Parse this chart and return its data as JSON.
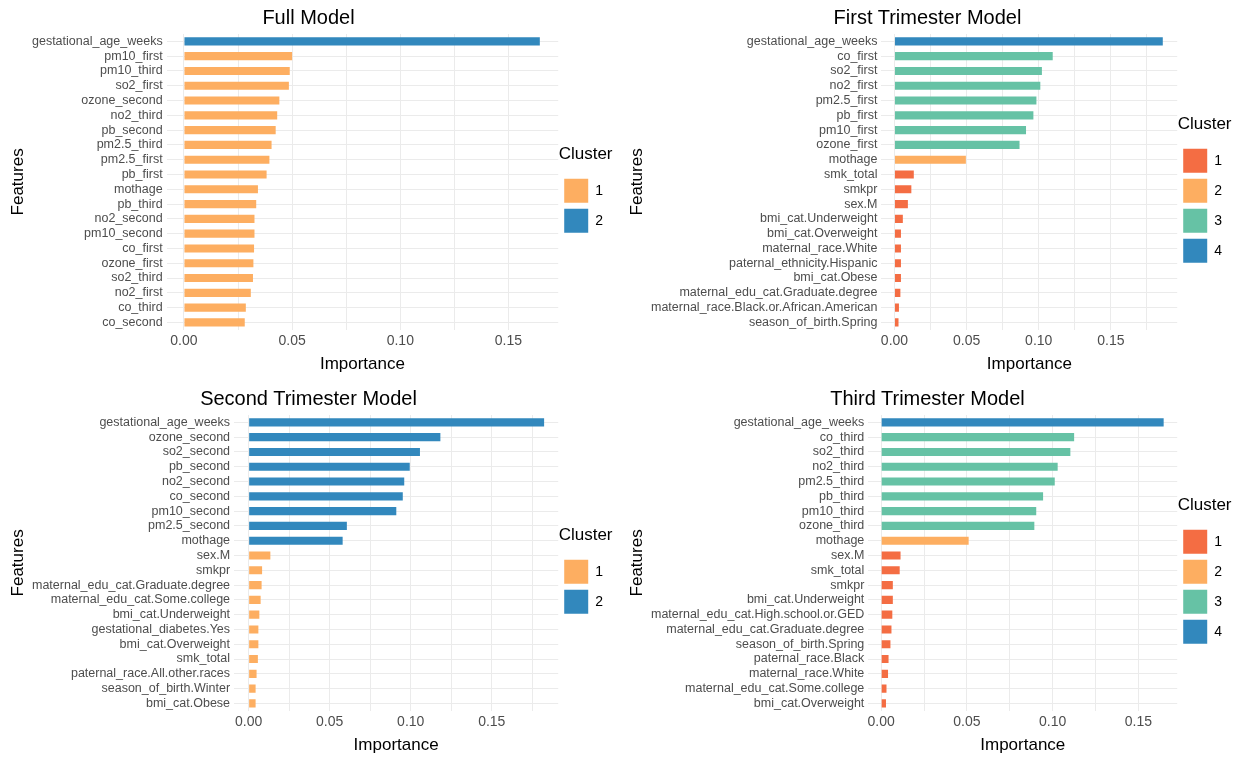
{
  "chart_data": [
    {
      "type": "bar",
      "orientation": "horizontal",
      "title": "Full Model",
      "xlabel": "Importance",
      "ylabel": "Features",
      "legend_title": "Cluster",
      "legend": "right",
      "grid": true,
      "categories": [
        "gestational_age_weeks",
        "pm10_first",
        "pm10_third",
        "so2_first",
        "ozone_second",
        "no2_third",
        "pb_second",
        "pm2.5_third",
        "pm2.5_first",
        "pb_first",
        "mothage",
        "pb_third",
        "no2_second",
        "pm10_second",
        "co_first",
        "ozone_first",
        "so2_third",
        "no2_first",
        "co_third",
        "co_second"
      ],
      "series": [
        {
          "name": "1",
          "color": "#fdae61",
          "values": [
            null,
            0.05,
            0.0489,
            0.0485,
            0.0441,
            0.0431,
            0.0424,
            0.0405,
            0.0395,
            0.0382,
            0.0342,
            0.0334,
            0.0326,
            0.0326,
            0.0324,
            0.0321,
            0.0319,
            0.0309,
            0.0286,
            0.0281
          ]
        },
        {
          "name": "2",
          "color": "#3288bd",
          "values": [
            0.1645,
            null,
            null,
            null,
            null,
            null,
            null,
            null,
            null,
            null,
            null,
            null,
            null,
            null,
            null,
            null,
            null,
            null,
            null,
            null
          ]
        }
      ],
      "xlim": [
        -0.008,
        0.173
      ],
      "xticks": [
        {
          "value": 0,
          "label": "0.00"
        },
        {
          "value": 0.025,
          "label": null
        },
        {
          "value": 0.05,
          "label": "0.05"
        },
        {
          "value": 0.075,
          "label": null
        },
        {
          "value": 0.1,
          "label": "0.10"
        },
        {
          "value": 0.125,
          "label": null
        },
        {
          "value": 0.15,
          "label": "0.15"
        }
      ]
    },
    {
      "type": "bar",
      "orientation": "horizontal",
      "title": "First Trimester Model",
      "xlabel": "Importance",
      "ylabel": "Features",
      "legend_title": "Cluster",
      "legend": "right",
      "grid": true,
      "categories": [
        "gestational_age_weeks",
        "co_first",
        "so2_first",
        "no2_first",
        "pm2.5_first",
        "pb_first",
        "pm10_first",
        "ozone_first",
        "mothage",
        "smk_total",
        "smkpr",
        "sex.M",
        "bmi_cat.Underweight",
        "bmi_cat.Overweight",
        "maternal_race.White",
        "paternal_ethnicity.Hispanic",
        "bmi_cat.Obese",
        "maternal_edu_cat.Graduate.degree",
        "maternal_race.Black.or.African.American",
        "season_of_birth.Spring"
      ],
      "series": [
        {
          "name": "1",
          "color": "#f46d43",
          "values": [
            null,
            null,
            null,
            null,
            null,
            null,
            null,
            null,
            null,
            0.0134,
            0.0117,
            0.0093,
            0.0058,
            0.0045,
            0.0045,
            0.0045,
            0.0045,
            0.0041,
            0.0031,
            0.0028
          ]
        },
        {
          "name": "2",
          "color": "#fdae61",
          "values": [
            null,
            null,
            null,
            null,
            null,
            null,
            null,
            null,
            0.0495,
            null,
            null,
            null,
            null,
            null,
            null,
            null,
            null,
            null,
            null,
            null
          ]
        },
        {
          "name": "3",
          "color": "#66c2a5",
          "values": [
            null,
            0.1097,
            0.1022,
            0.1011,
            0.0984,
            0.0963,
            0.0912,
            0.0867,
            null,
            null,
            null,
            null,
            null,
            null,
            null,
            null,
            null,
            null,
            null,
            null
          ]
        },
        {
          "name": "4",
          "color": "#3288bd",
          "values": [
            0.186,
            null,
            null,
            null,
            null,
            null,
            null,
            null,
            null,
            null,
            null,
            null,
            null,
            null,
            null,
            null,
            null,
            null,
            null,
            null
          ]
        }
      ],
      "xlim": [
        -0.009,
        0.196
      ],
      "xticks": [
        {
          "value": 0,
          "label": "0.00"
        },
        {
          "value": 0.025,
          "label": null
        },
        {
          "value": 0.05,
          "label": "0.05"
        },
        {
          "value": 0.075,
          "label": null
        },
        {
          "value": 0.1,
          "label": "0.10"
        },
        {
          "value": 0.125,
          "label": null
        },
        {
          "value": 0.15,
          "label": "0.15"
        },
        {
          "value": 0.175,
          "label": null
        }
      ]
    },
    {
      "type": "bar",
      "orientation": "horizontal",
      "title": "Second Trimester Model",
      "xlabel": "Importance",
      "ylabel": "Features",
      "legend_title": "Cluster",
      "legend": "right",
      "grid": true,
      "categories": [
        "gestational_age_weeks",
        "ozone_second",
        "so2_second",
        "pb_second",
        "no2_second",
        "co_second",
        "pm10_second",
        "pm2.5_second",
        "mothage",
        "sex.M",
        "smkpr",
        "maternal_edu_cat.Graduate.degree",
        "maternal_edu_cat.Some.college",
        "bmi_cat.Underweight",
        "gestational_diabetes.Yes",
        "bmi_cat.Overweight",
        "smk_total",
        "paternal_race.All.other.races",
        "season_of_birth.Winter",
        "bmi_cat.Obese"
      ],
      "series": [
        {
          "name": "1",
          "color": "#fdae61",
          "values": [
            null,
            null,
            null,
            null,
            null,
            null,
            null,
            null,
            null,
            0.0134,
            0.0083,
            0.008,
            0.0074,
            0.0066,
            0.006,
            0.006,
            0.0057,
            0.0049,
            0.0043,
            0.0043
          ]
        },
        {
          "name": "2",
          "color": "#3288bd",
          "values": [
            0.1823,
            0.1183,
            0.1057,
            0.0994,
            0.096,
            0.0951,
            0.0911,
            0.0606,
            0.058,
            null,
            null,
            null,
            null,
            null,
            null,
            null,
            null,
            null,
            null,
            null
          ]
        }
      ],
      "xlim": [
        -0.009,
        0.191
      ],
      "xticks": [
        {
          "value": 0,
          "label": "0.00"
        },
        {
          "value": 0.025,
          "label": null
        },
        {
          "value": 0.05,
          "label": "0.05"
        },
        {
          "value": 0.075,
          "label": null
        },
        {
          "value": 0.1,
          "label": "0.10"
        },
        {
          "value": 0.125,
          "label": null
        },
        {
          "value": 0.15,
          "label": "0.15"
        },
        {
          "value": 0.175,
          "label": null
        }
      ]
    },
    {
      "type": "bar",
      "orientation": "horizontal",
      "title": "Third Trimester Model",
      "xlabel": "Importance",
      "ylabel": "Features",
      "legend_title": "Cluster",
      "legend": "right",
      "grid": true,
      "categories": [
        "gestational_age_weeks",
        "co_third",
        "so2_third",
        "no2_third",
        "pm2.5_third",
        "pb_third",
        "pm10_third",
        "ozone_third",
        "mothage",
        "sex.M",
        "smk_total",
        "smkpr",
        "bmi_cat.Underweight",
        "maternal_edu_cat.High.school.or.GED",
        "maternal_edu_cat.Graduate.degree",
        "season_of_birth.Spring",
        "paternal_race.Black",
        "maternal_race.White",
        "maternal_edu_cat.Some.college",
        "bmi_cat.Overweight"
      ],
      "series": [
        {
          "name": "1",
          "color": "#f46d43",
          "values": [
            null,
            null,
            null,
            null,
            null,
            null,
            null,
            null,
            null,
            0.0113,
            0.0108,
            0.0068,
            0.0068,
            0.0065,
            0.006,
            0.0054,
            0.0043,
            0.004,
            0.0031,
            0.0028
          ]
        },
        {
          "name": "2",
          "color": "#fdae61",
          "values": [
            null,
            null,
            null,
            null,
            null,
            null,
            null,
            null,
            0.051,
            null,
            null,
            null,
            null,
            null,
            null,
            null,
            null,
            null,
            null,
            null
          ]
        },
        {
          "name": "3",
          "color": "#66c2a5",
          "values": [
            null,
            0.1125,
            0.1103,
            0.1029,
            0.1012,
            0.0944,
            0.0904,
            0.0893,
            null,
            null,
            null,
            null,
            null,
            null,
            null,
            null,
            null,
            null,
            null,
            null
          ]
        },
        {
          "name": "4",
          "color": "#3288bd",
          "values": [
            0.1647,
            null,
            null,
            null,
            null,
            null,
            null,
            null,
            null,
            null,
            null,
            null,
            null,
            null,
            null,
            null,
            null,
            null,
            null,
            null
          ]
        }
      ],
      "xlim": [
        -0.0075,
        0.1726
      ],
      "xticks": [
        {
          "value": 0,
          "label": "0.00"
        },
        {
          "value": 0.025,
          "label": null
        },
        {
          "value": 0.05,
          "label": "0.05"
        },
        {
          "value": 0.075,
          "label": null
        },
        {
          "value": 0.1,
          "label": "0.10"
        },
        {
          "value": 0.125,
          "label": null
        },
        {
          "value": 0.15,
          "label": "0.15"
        }
      ]
    }
  ]
}
